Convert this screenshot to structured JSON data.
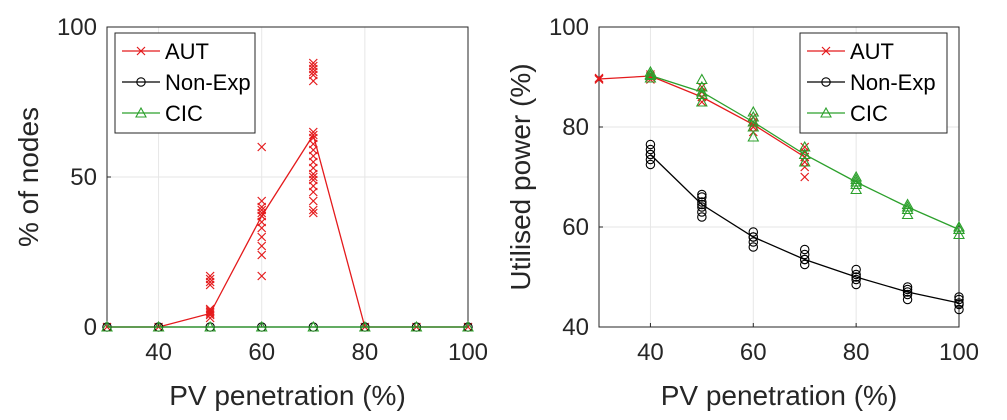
{
  "colors": {
    "aut": "#e41a1c",
    "nonexp": "#000000",
    "cic": "#2ca02c",
    "grid": "#e6e6e6",
    "axis": "#262626"
  },
  "chart_data": [
    {
      "type": "line",
      "title": "",
      "xlabel": "PV penetration (%)",
      "ylabel": "% of nodes",
      "xlim": [
        30,
        100
      ],
      "ylim": [
        0,
        100
      ],
      "xticks": [
        40,
        60,
        80,
        100
      ],
      "yticks": [
        0,
        50,
        100
      ],
      "grid": true,
      "legend_position": "top-left",
      "x": [
        30,
        40,
        50,
        60,
        70,
        80,
        90,
        100
      ],
      "series": [
        {
          "name": "AUT",
          "key": "aut",
          "marker": "x",
          "values": [
            0,
            0,
            4.5,
            37,
            64,
            0,
            0,
            0
          ],
          "samples": [
            {
              "x": 50,
              "ys": [
                3,
                4,
                5,
                5.5,
                6,
                14,
                15,
                16,
                17
              ]
            },
            {
              "x": 60,
              "ys": [
                17,
                24,
                27,
                30,
                33,
                35,
                37,
                38,
                39,
                40,
                42,
                60
              ]
            },
            {
              "x": 70,
              "ys": [
                38,
                39,
                42,
                45,
                47,
                49,
                50,
                51,
                53,
                55,
                57,
                59,
                61,
                63,
                65,
                82,
                84,
                85,
                86,
                87,
                88
              ]
            }
          ]
        },
        {
          "name": "Non-Exp",
          "key": "nonexp",
          "marker": "o",
          "values": [
            0,
            0,
            0,
            0,
            0,
            0,
            0,
            0
          ],
          "samples": []
        },
        {
          "name": "CIC",
          "key": "cic",
          "marker": "triangle",
          "values": [
            0,
            0,
            0,
            0,
            0,
            0,
            0,
            0
          ],
          "samples": []
        }
      ]
    },
    {
      "type": "line",
      "title": "",
      "xlabel": "PV penetration (%)",
      "ylabel": "Utilised power (%)",
      "xlim": [
        30,
        100
      ],
      "ylim": [
        40,
        100
      ],
      "xticks": [
        40,
        60,
        80,
        100
      ],
      "yticks": [
        40,
        60,
        80,
        100
      ],
      "grid": true,
      "legend_position": "top-right",
      "x": [
        30,
        40,
        50,
        60,
        70,
        80,
        90,
        100
      ],
      "series": [
        {
          "name": "AUT",
          "key": "aut",
          "marker": "x",
          "x": [
            30,
            40,
            50,
            60,
            70
          ],
          "values": [
            89.6,
            90.2,
            86,
            80.5,
            74
          ],
          "samples": [
            {
              "x": 30,
              "ys": [
                89.5,
                89.8
              ]
            },
            {
              "x": 40,
              "ys": [
                89.5,
                90,
                90.5
              ]
            },
            {
              "x": 50,
              "ys": [
                85,
                86,
                87,
                88
              ]
            },
            {
              "x": 60,
              "ys": [
                79,
                80,
                81,
                82
              ]
            },
            {
              "x": 70,
              "ys": [
                70,
                72,
                73,
                74,
                75,
                76
              ]
            }
          ]
        },
        {
          "name": "Non-Exp",
          "key": "nonexp",
          "marker": "o",
          "x": [
            40,
            50,
            60,
            70,
            80,
            90,
            100
          ],
          "values": [
            74.5,
            64.5,
            58,
            53.5,
            50,
            47,
            44.8
          ],
          "samples": [
            {
              "x": 40,
              "ys": [
                72.5,
                73.5,
                74.5,
                75.5,
                76.5
              ]
            },
            {
              "x": 50,
              "ys": [
                62,
                63,
                64,
                65,
                66,
                66.5
              ]
            },
            {
              "x": 60,
              "ys": [
                56,
                57,
                58,
                59
              ]
            },
            {
              "x": 70,
              "ys": [
                52.5,
                53.5,
                54.5,
                55.5
              ]
            },
            {
              "x": 80,
              "ys": [
                48.5,
                49.5,
                50.5,
                51.5
              ]
            },
            {
              "x": 90,
              "ys": [
                45.5,
                46.5,
                47.5,
                48
              ]
            },
            {
              "x": 100,
              "ys": [
                43.5,
                44.5,
                45.5,
                46
              ]
            }
          ]
        },
        {
          "name": "CIC",
          "key": "cic",
          "marker": "triangle",
          "x": [
            40,
            50,
            60,
            70,
            80,
            90,
            100
          ],
          "values": [
            90.3,
            87,
            81,
            74.5,
            69,
            64,
            59.5
          ],
          "samples": [
            {
              "x": 40,
              "ys": [
                89.8,
                90.5,
                91
              ]
            },
            {
              "x": 50,
              "ys": [
                85,
                86.5,
                88,
                89.5
              ]
            },
            {
              "x": 60,
              "ys": [
                78,
                80,
                82,
                83
              ]
            },
            {
              "x": 70,
              "ys": [
                73,
                74.5,
                76
              ]
            },
            {
              "x": 80,
              "ys": [
                67.5,
                68.5,
                69.5,
                70
              ]
            },
            {
              "x": 90,
              "ys": [
                62.5,
                63.5,
                64.5
              ]
            },
            {
              "x": 100,
              "ys": [
                58.5,
                59.5,
                60
              ]
            }
          ]
        }
      ]
    }
  ]
}
